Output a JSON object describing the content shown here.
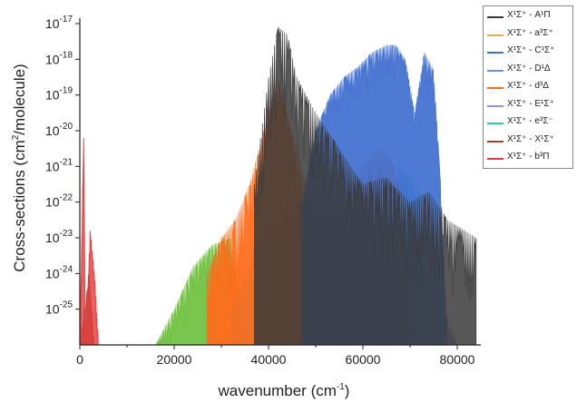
{
  "chart_data": {
    "type": "area",
    "xlabel": "wavenumber (cm",
    "xlabel_sup": "-1",
    "xlabel_tail": ")",
    "ylabel": "Cross-sections (cm",
    "ylabel_sup": "2",
    "ylabel_tail": "/molecule)",
    "xlim": [
      0,
      85000
    ],
    "ylim_exp": [
      -26,
      -17
    ],
    "yscale": "log",
    "x_ticks": [
      {
        "value": 0,
        "label": "0"
      },
      {
        "value": 20000,
        "label": "20000"
      },
      {
        "value": 40000,
        "label": "40000"
      },
      {
        "value": 60000,
        "label": "60000"
      },
      {
        "value": 80000,
        "label": "80000"
      }
    ],
    "y_ticks": [
      {
        "exp": -17,
        "base": "10",
        "sup": "-17"
      },
      {
        "exp": -18,
        "base": "10",
        "sup": "-18"
      },
      {
        "exp": -19,
        "base": "10",
        "sup": "-19"
      },
      {
        "exp": -20,
        "base": "10",
        "sup": "-20"
      },
      {
        "exp": -21,
        "base": "10",
        "sup": "-21"
      },
      {
        "exp": -22,
        "base": "10",
        "sup": "-22"
      },
      {
        "exp": -23,
        "base": "10",
        "sup": "-23"
      },
      {
        "exp": -24,
        "base": "10",
        "sup": "-24"
      },
      {
        "exp": -25,
        "base": "10",
        "sup": "-25"
      }
    ],
    "legend_position": "top-right",
    "series": [
      {
        "name": "X¹Σ⁺ - A¹Π",
        "color": "#3a3a3a",
        "x": [
          37000,
          40000,
          42000,
          44000,
          46000,
          50000,
          55000,
          60000,
          65000,
          70000,
          74000,
          78000,
          84000
        ],
        "y": [
          -21.5,
          -18.5,
          -17.1,
          -17.3,
          -18.5,
          -19.5,
          -20.5,
          -21.5,
          -21.3,
          -22.0,
          -21.7,
          -22.5,
          -23.0
        ]
      },
      {
        "name": "X¹Σ⁺ - a³Σ⁺",
        "color": "#f2a640",
        "x": [
          30000,
          35000,
          40000,
          44000,
          48000,
          52000
        ],
        "y": [
          -25.0,
          -24.0,
          -23.5,
          -23.0,
          -24.0,
          -25.5
        ]
      },
      {
        "name": "X¹Σ⁺ - C¹Σ⁺",
        "color": "#3f6fcf",
        "x": [
          47000,
          50000,
          53000,
          56000,
          59000,
          62000,
          65000,
          67000,
          69000,
          71000,
          73000,
          75000,
          76500,
          78000
        ],
        "y": [
          -22.0,
          -20.0,
          -19.0,
          -18.5,
          -18.2,
          -17.8,
          -17.6,
          -17.6,
          -18.0,
          -19.5,
          -17.8,
          -18.3,
          -21.5,
          -26.0
        ]
      },
      {
        "name": "X¹Σ⁺ - D¹Δ",
        "color": "#6a93d8",
        "x": [
          34000,
          37000,
          40000,
          43000,
          46000
        ],
        "y": [
          -26.0,
          -24.0,
          -23.5,
          -24.5,
          -26.0
        ]
      },
      {
        "name": "X¹Σ⁺ - d³Δ",
        "color": "#ff6a1a",
        "x": [
          27000,
          30000,
          33000,
          36000,
          39000,
          42000,
          45000,
          48000,
          52000,
          56000,
          60000,
          63000,
          66000,
          69000,
          70000
        ],
        "y": [
          -24.0,
          -23.0,
          -22.5,
          -21.5,
          -20.0,
          -18.5,
          -20.0,
          -21.5,
          -22.0,
          -21.8,
          -21.0,
          -20.5,
          -20.8,
          -22.0,
          -25.0
        ]
      },
      {
        "name": "X¹Σ⁺ - E¹Σ⁺",
        "color": "#9f8bd1",
        "x": [
          60000,
          64000,
          68000,
          72000,
          76000,
          80000
        ],
        "y": [
          -26.0,
          -25.0,
          -24.5,
          -24.0,
          -24.5,
          -26.0
        ]
      },
      {
        "name": "X¹Σ⁺ - e³Σ⁻",
        "color": "#2ec4c4",
        "x": [
          32000,
          36000,
          40000,
          44000,
          48000,
          52000,
          56000,
          60000,
          64000,
          68000,
          72000,
          74000
        ],
        "y": [
          -25.0,
          -23.5,
          -22.0,
          -21.5,
          -22.0,
          -23.0,
          -23.5,
          -23.0,
          -22.0,
          -21.0,
          -21.5,
          -26.0
        ]
      },
      {
        "name": "X¹Σ⁺ -  X¹Σ⁺",
        "color": "#9a4a2a",
        "x": [
          0,
          1000,
          2000,
          3000
        ],
        "y": [
          -26.0,
          -25.0,
          -24.0,
          -26.0
        ]
      },
      {
        "name": "X¹Σ⁺ - b³Π",
        "color": "#e43a3a",
        "x": [
          0,
          800,
          1200,
          2200,
          3200,
          4000
        ],
        "y": [
          -26.0,
          -20.2,
          -26.0,
          -22.8,
          -24.2,
          -26.0
        ]
      }
    ],
    "green_region": {
      "color": "#6cbf3a",
      "x": [
        16000,
        20000,
        24000,
        28000,
        32000,
        35000
      ],
      "y": [
        -26.0,
        -25.0,
        -23.8,
        -23.2,
        -23.0,
        -26.0
      ]
    }
  }
}
